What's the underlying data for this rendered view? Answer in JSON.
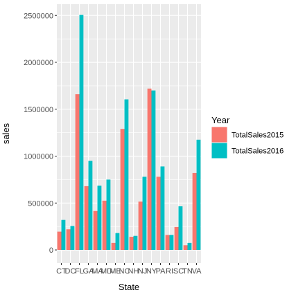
{
  "chart_data": {
    "type": "bar",
    "xlabel": "State",
    "ylabel": "sales",
    "ylim": [
      -140000,
      2620000
    ],
    "yticks": [
      0,
      500000,
      1000000,
      1500000,
      2000000,
      2500000
    ],
    "ytick_labels": [
      "0",
      "500000",
      "1000000",
      "1500000",
      "2000000",
      "2500000"
    ],
    "categories": [
      "CT",
      "DC",
      "FL",
      "GA",
      "MA",
      "MD",
      "ME",
      "NC",
      "NH",
      "NJ",
      "NY",
      "PA",
      "RI",
      "SC",
      "TN",
      "VA"
    ],
    "grid": true,
    "legend": {
      "title": "Year",
      "position": "right"
    },
    "series": [
      {
        "name": "TotalSales2015",
        "color": "#F8766D",
        "values": [
          195000,
          220000,
          1660000,
          680000,
          415000,
          525000,
          75000,
          1290000,
          140000,
          515000,
          1720000,
          780000,
          160000,
          245000,
          50000,
          820000
        ]
      },
      {
        "name": "TotalSales2016",
        "color": "#00BFC4",
        "values": [
          320000,
          255000,
          2505000,
          950000,
          685000,
          750000,
          180000,
          1605000,
          150000,
          780000,
          1700000,
          890000,
          160000,
          465000,
          75000,
          1175000
        ]
      }
    ]
  }
}
